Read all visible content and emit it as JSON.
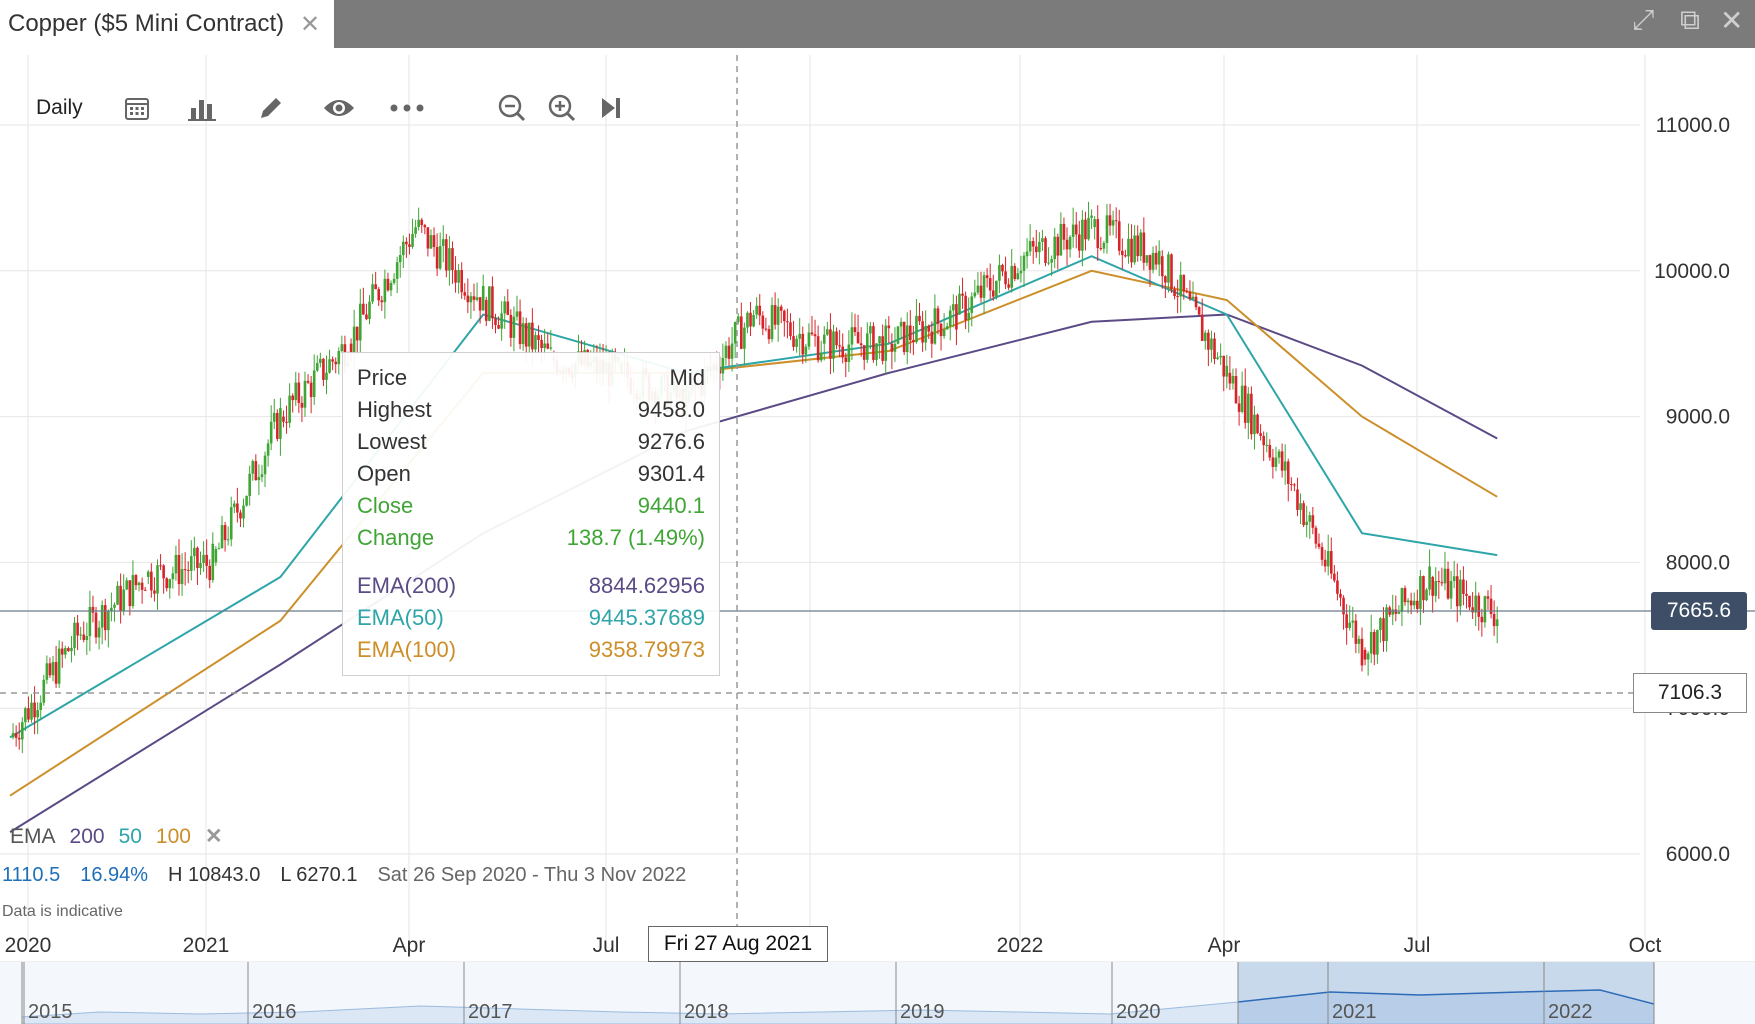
{
  "tab": {
    "title": "Copper ($5 Mini Contract)",
    "close": "✕"
  },
  "window_controls": {
    "expand": "⤢",
    "popout": "⧉",
    "close": "✕"
  },
  "toolbar": {
    "interval": "Daily",
    "icons": [
      "calendar-icon",
      "bar-chart-icon",
      "pencil-icon",
      "eye-icon",
      "more-icon",
      "zoom-out-icon",
      "zoom-in-icon",
      "skip-to-end-icon"
    ]
  },
  "tooltip": {
    "header_label": "Price",
    "header_value": "Mid",
    "rows": [
      {
        "label": "Highest",
        "value": "9458.0",
        "color": "#333333"
      },
      {
        "label": "Lowest",
        "value": "9276.6",
        "color": "#333333"
      },
      {
        "label": "Open",
        "value": "9301.4",
        "color": "#333333"
      },
      {
        "label": "Close",
        "value": "9440.1",
        "color": "#3fa535"
      },
      {
        "label": "Change",
        "value": "138.7 (1.49%)",
        "color": "#3fa535"
      }
    ],
    "ema_rows": [
      {
        "label": "EMA(200)",
        "value": "8844.62956",
        "color": "#5b4a86"
      },
      {
        "label": "EMA(50)",
        "value": "9445.37689",
        "color": "#2ea5a8"
      },
      {
        "label": "EMA(100)",
        "value": "9358.79973",
        "color": "#cc8f2a"
      }
    ]
  },
  "legend": {
    "label": "EMA",
    "p200": "200",
    "p50": "50",
    "p100": "100",
    "remove": "✕"
  },
  "stats": {
    "change": "1110.5",
    "pct": "16.94%",
    "high": "H 10843.0",
    "low": "L 6270.1",
    "range": "Sat 26 Sep 2020 - Thu 3 Nov 2022"
  },
  "disclaimer": "Data is indicative",
  "current_price": "7665.6",
  "crosshair_price": "7106.3",
  "crosshair_date": "Fri 27 Aug 2021",
  "colors": {
    "up": "#3fa535",
    "down": "#d9232a",
    "ema200": "#5b4a86",
    "ema50": "#2ea5a8",
    "ema100": "#cc8f2a",
    "badge": "#3d4e66"
  },
  "navigator_labels": [
    "2015",
    "2016",
    "2017",
    "2018",
    "2019",
    "2020",
    "2021",
    "2022"
  ],
  "chart_data": {
    "type": "candlestick",
    "x_tick_labels": [
      "2020",
      "2021",
      "Apr",
      "Jul",
      "Oct",
      "2022",
      "Apr",
      "Jul",
      "Oct"
    ],
    "y_tick_labels": [
      "11000.0",
      "10000.0",
      "9000.0",
      "8000.0",
      "7000.0",
      "6000.0"
    ],
    "ylim": [
      5800,
      11400
    ],
    "close_series": {
      "x": [
        "2020-11",
        "2020-12",
        "2021-01",
        "2021-02",
        "2021-03",
        "2021-04",
        "2021-05",
        "2021-06",
        "2021-07",
        "2021-08",
        "2021-09",
        "2021-10",
        "2021-11",
        "2021-12",
        "2022-01",
        "2022-02",
        "2022-03",
        "2022-04",
        "2022-05",
        "2022-06",
        "2022-07",
        "2022-08",
        "2022-09"
      ],
      "values": [
        6800,
        7500,
        7900,
        8000,
        9000,
        9500,
        10300,
        9800,
        9400,
        9300,
        9100,
        9700,
        9500,
        9500,
        9700,
        10100,
        10300,
        10100,
        9300,
        8500,
        7400,
        7900,
        7650
      ]
    },
    "ema200": {
      "x": [
        "2020-11",
        "2021-03",
        "2021-06",
        "2021-09",
        "2021-12",
        "2022-03",
        "2022-05",
        "2022-07",
        "2022-09"
      ],
      "values": [
        6150,
        7300,
        8200,
        8900,
        9300,
        9650,
        9700,
        9350,
        8850
      ]
    },
    "ema50": {
      "x": [
        "2020-11",
        "2021-03",
        "2021-06",
        "2021-09",
        "2021-12",
        "2022-03",
        "2022-05",
        "2022-07",
        "2022-09"
      ],
      "values": [
        6800,
        7900,
        9700,
        9300,
        9500,
        10100,
        9700,
        8200,
        8050
      ]
    },
    "ema100": {
      "x": [
        "2020-11",
        "2021-03",
        "2021-06",
        "2021-09",
        "2021-12",
        "2022-03",
        "2022-05",
        "2022-07",
        "2022-09"
      ],
      "values": [
        6400,
        7600,
        9300,
        9300,
        9450,
        10000,
        9800,
        9000,
        8450
      ]
    }
  }
}
